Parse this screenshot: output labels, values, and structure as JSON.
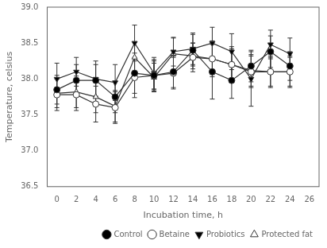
{
  "chart_data": {
    "type": "line",
    "x": [
      0,
      2,
      4,
      6,
      8,
      10,
      12,
      14,
      16,
      18,
      20,
      22,
      24
    ],
    "series": [
      {
        "name": "Control",
        "color": "#333333",
        "marker": "circle",
        "values": [
          37.85,
          37.98,
          37.98,
          37.75,
          38.08,
          38.05,
          38.1,
          38.4,
          38.1,
          37.98,
          38.18,
          38.38,
          38.18
        ],
        "errors": [
          0.2,
          0.22,
          0.22,
          0.22,
          0.28,
          0.2,
          0.22,
          0.22,
          0.38,
          0.25,
          0.22,
          0.22,
          0.2
        ]
      },
      {
        "name": "Betaine",
        "color": "#333333",
        "marker": "open_circle",
        "values": [
          37.78,
          37.78,
          37.65,
          37.6,
          38.02,
          38.05,
          38.08,
          38.3,
          38.28,
          38.2,
          38.1,
          38.1,
          38.1
        ],
        "errors": [
          0.22,
          0.22,
          0.25,
          0.22,
          0.28,
          0.22,
          0.22,
          0.2,
          0.25,
          0.25,
          0.22,
          0.2,
          0.22
        ]
      },
      {
        "name": "Probiotics",
        "color": "#333333",
        "marker": "triangle_down",
        "values": [
          38.0,
          38.1,
          38.0,
          37.95,
          38.5,
          38.08,
          38.38,
          38.42,
          38.5,
          38.38,
          38.0,
          38.48,
          38.35
        ],
        "errors": [
          0.22,
          0.2,
          0.25,
          0.25,
          0.25,
          0.22,
          0.2,
          0.22,
          0.22,
          0.25,
          0.38,
          0.2,
          0.22
        ]
      },
      {
        "name": "Protected fat",
        "color": "#333333",
        "marker": "open_triangle",
        "values": [
          37.8,
          37.82,
          37.75,
          37.62,
          38.3,
          38.02,
          38.35,
          38.32,
          38.28,
          38.2,
          38.12,
          38.1,
          38.1
        ],
        "errors": [
          0.2,
          0.22,
          0.22,
          0.22,
          0.22,
          0.2,
          0.22,
          0.18,
          0.22,
          0.22,
          0.22,
          0.22,
          0.2
        ]
      }
    ],
    "xlabel": "Incubation time, h",
    "ylabel": "Temperature, celsius",
    "xlim": [
      -1,
      27
    ],
    "ylim": [
      36.5,
      39.0
    ],
    "xticks": [
      0,
      2,
      4,
      6,
      8,
      10,
      12,
      14,
      16,
      18,
      20,
      22,
      24,
      26
    ],
    "yticks": [
      36.5,
      {
        "value": 37.0,
        "label": "37.0"
      },
      37.5,
      {
        "value": 38.0,
        "label": "38.0"
      },
      38.5,
      {
        "value": 39.0,
        "label": "39.0"
      }
    ],
    "grid": false,
    "legend": "lower right"
  }
}
